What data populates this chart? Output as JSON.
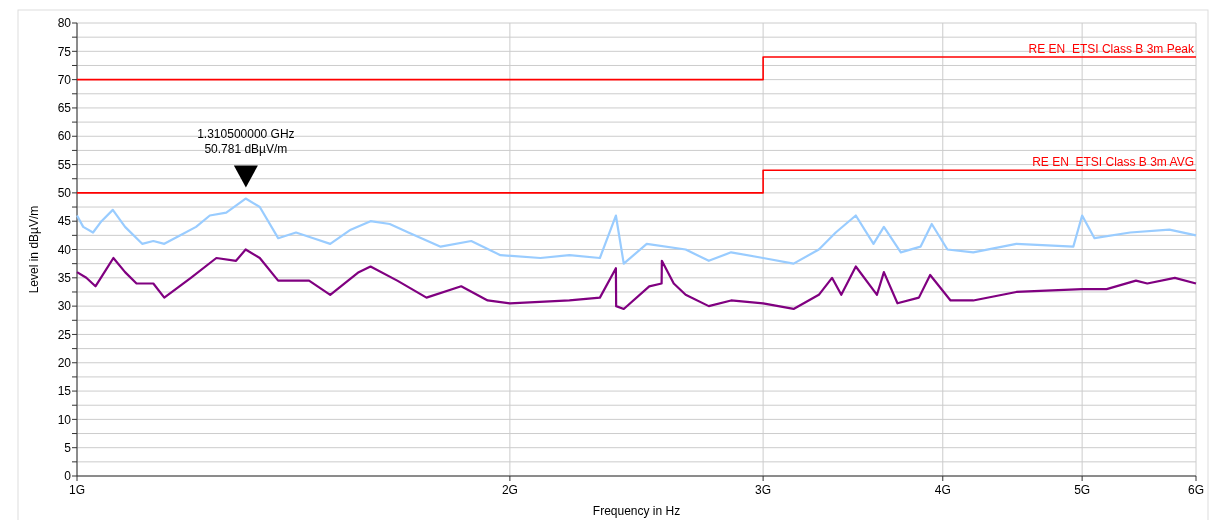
{
  "chart_data": {
    "type": "line",
    "xlabel": "Frequency in Hz",
    "ylabel": "Level in dBµV/m",
    "log": "x",
    "xlim": [
      1,
      6
    ],
    "xticks": [
      {
        "value": 1,
        "label": "1G"
      },
      {
        "value": 2,
        "label": "2G"
      },
      {
        "value": 3,
        "label": "3G"
      },
      {
        "value": 4,
        "label": "4G"
      },
      {
        "value": 5,
        "label": "5G"
      },
      {
        "value": 6,
        "label": "6G"
      }
    ],
    "ylim": [
      0,
      80
    ],
    "yticks": [
      0,
      {
        "value": 2.5,
        "label": null
      },
      5,
      {
        "value": 7.5,
        "label": null
      },
      10,
      {
        "value": 12.5,
        "label": null
      },
      15,
      {
        "value": 17.5,
        "label": null
      },
      20,
      {
        "value": 22.5,
        "label": null
      },
      25,
      {
        "value": 27.5,
        "label": null
      },
      30,
      {
        "value": 32.5,
        "label": null
      },
      35,
      {
        "value": 37.5,
        "label": null
      },
      40,
      {
        "value": 42.5,
        "label": null
      },
      45,
      {
        "value": 47.5,
        "label": null
      },
      50,
      {
        "value": 52.5,
        "label": null
      },
      55,
      {
        "value": 57.5,
        "label": null
      },
      60,
      {
        "value": 62.5,
        "label": null
      },
      65,
      {
        "value": 67.5,
        "label": null
      },
      70,
      {
        "value": 72.5,
        "label": null
      },
      75,
      {
        "value": 77.5,
        "label": null
      },
      80
    ],
    "grid": true,
    "marker": "none",
    "line_style": "solid",
    "series": [
      {
        "color": "#99ccff",
        "x": [
          1,
          1.01,
          1.026,
          1.04,
          1.059,
          1.08,
          1.11,
          1.13,
          1.15,
          1.18,
          1.21,
          1.237,
          1.27,
          1.31,
          1.34,
          1.38,
          1.42,
          1.46,
          1.5,
          1.55,
          1.6,
          1.65,
          1.7,
          1.79,
          1.88,
          1.97,
          2.1,
          2.2,
          2.31,
          2.37,
          2.4,
          2.49,
          2.65,
          2.75,
          2.85,
          3,
          3.15,
          3.28,
          3.37,
          3.48,
          3.58,
          3.64,
          3.74,
          3.86,
          3.93,
          4.03,
          4.2,
          4.5,
          4.93,
          5,
          5.1,
          5.4,
          5.75,
          6
        ],
        "values": [
          46,
          44,
          43,
          45,
          47,
          44,
          41,
          41.5,
          41,
          42.5,
          44,
          46,
          46.5,
          49,
          47.5,
          42,
          43,
          42,
          41,
          43.5,
          45,
          44.5,
          43,
          40.5,
          41.5,
          39,
          38.5,
          39,
          38.5,
          46,
          37.5,
          41,
          40,
          38,
          39.5,
          38.5,
          37.5,
          40,
          43,
          46,
          41,
          44,
          39.5,
          40.5,
          44.5,
          40,
          39.5,
          41,
          40.5,
          46,
          42,
          43,
          43.5,
          42.5
        ]
      },
      {
        "color": "#800080",
        "x": [
          1,
          1.015,
          1.03,
          1.045,
          1.06,
          1.08,
          1.1,
          1.13,
          1.15,
          1.2,
          1.25,
          1.29,
          1.31,
          1.34,
          1.38,
          1.45,
          1.5,
          1.57,
          1.6,
          1.67,
          1.75,
          1.85,
          1.93,
          2,
          2.2,
          2.31,
          2.37,
          2.371,
          2.4,
          2.5,
          2.55,
          2.551,
          2.6,
          2.65,
          2.75,
          2.85,
          3,
          3.15,
          3.28,
          3.35,
          3.4,
          3.48,
          3.6,
          3.64,
          3.72,
          3.85,
          3.92,
          4.05,
          4.2,
          4.5,
          5,
          5.2,
          5.45,
          5.55,
          5.8,
          6
        ],
        "values": [
          36,
          35,
          33.5,
          36,
          38.5,
          36,
          34,
          34,
          31.5,
          35,
          38.5,
          38,
          40,
          38.5,
          34.5,
          34.5,
          32,
          36,
          37,
          34.5,
          31.5,
          33.5,
          31,
          30.5,
          31,
          31.5,
          36.7,
          30,
          29.5,
          33.5,
          34,
          38,
          34,
          32,
          30,
          31,
          30.5,
          29.5,
          32,
          35,
          32,
          37,
          32,
          36,
          30.5,
          31.5,
          35.5,
          31,
          31,
          32.5,
          33,
          33,
          34.5,
          34,
          35,
          34
        ]
      },
      {
        "type": "step",
        "name": "RE EN  ETSI Class B 3m Peak",
        "color": "#ff0000",
        "x": [
          1,
          3,
          6
        ],
        "values": [
          70,
          74,
          74
        ]
      },
      {
        "type": "step",
        "name": "RE EN  ETSI Class B 3m AVG",
        "color": "#ff0000",
        "x": [
          1,
          3,
          6
        ],
        "values": [
          50,
          54,
          54
        ]
      }
    ],
    "annotations": [
      {
        "text": "1.310500000 GHz\n50.781 dBµV/m",
        "x": 1.3105,
        "y": 50.781
      }
    ]
  }
}
